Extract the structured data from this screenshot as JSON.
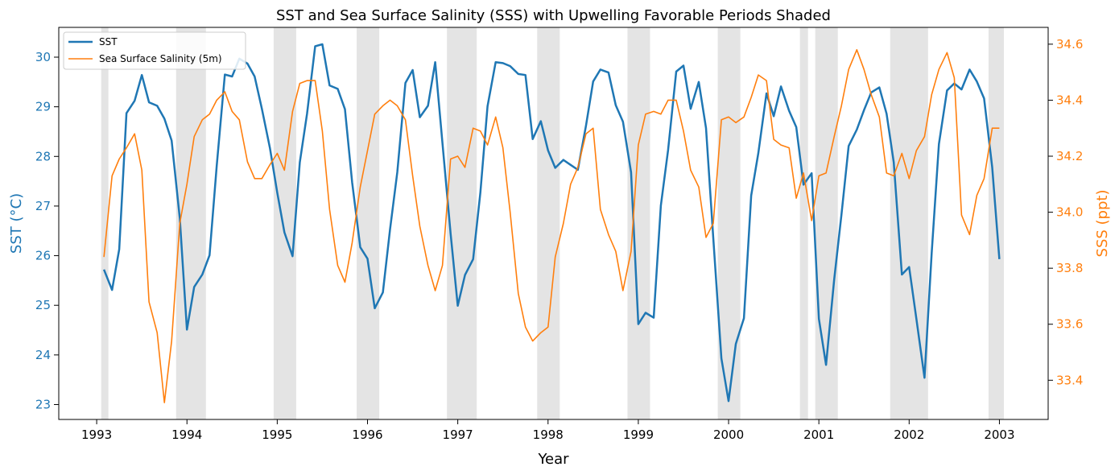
{
  "chart_data": {
    "type": "line",
    "title": "SST and Sea Surface Salinity (SSS) with Upwelling Favorable Periods Shaded",
    "xlabel": "Year",
    "ylabel_left": "SST (°C)",
    "ylabel_right": "SSS (ppt)",
    "xlim": [
      1992.58,
      2003.54
    ],
    "ylim_left": [
      22.7,
      30.6
    ],
    "ylim_right": [
      33.26,
      34.66
    ],
    "x_ticks": [
      1993,
      1994,
      1995,
      1996,
      1997,
      1998,
      1999,
      2000,
      2001,
      2002,
      2003
    ],
    "y_left_ticks": [
      23,
      24,
      25,
      26,
      27,
      28,
      29,
      30
    ],
    "y_right_ticks": [
      33.4,
      33.6,
      33.8,
      34.0,
      34.2,
      34.4,
      34.6
    ],
    "legend_position": "top-left",
    "grid": false,
    "colors": {
      "sst": "#1f77b4",
      "sss": "#ff7f0e",
      "shade": "#d9d9d9"
    },
    "x": [
      1993.08,
      1993.17,
      1993.25,
      1993.33,
      1993.42,
      1993.5,
      1993.58,
      1993.67,
      1993.75,
      1993.83,
      1993.92,
      1994.0,
      1994.08,
      1994.17,
      1994.25,
      1994.33,
      1994.42,
      1994.5,
      1994.58,
      1994.67,
      1994.75,
      1994.83,
      1994.92,
      1995.0,
      1995.08,
      1995.17,
      1995.25,
      1995.33,
      1995.42,
      1995.5,
      1995.58,
      1995.67,
      1995.75,
      1995.83,
      1995.92,
      1996.0,
      1996.08,
      1996.17,
      1996.25,
      1996.33,
      1996.42,
      1996.5,
      1996.58,
      1996.67,
      1996.75,
      1996.83,
      1996.92,
      1997.0,
      1997.08,
      1997.17,
      1997.25,
      1997.33,
      1997.42,
      1997.5,
      1997.58,
      1997.67,
      1997.75,
      1997.83,
      1997.92,
      1998.0,
      1998.08,
      1998.17,
      1998.25,
      1998.33,
      1998.42,
      1998.5,
      1998.58,
      1998.67,
      1998.75,
      1998.83,
      1998.92,
      1999.0,
      1999.08,
      1999.17,
      1999.25,
      1999.33,
      1999.42,
      1999.5,
      1999.58,
      1999.67,
      1999.75,
      1999.83,
      1999.92,
      2000.0,
      2000.08,
      2000.17,
      2000.25,
      2000.33,
      2000.42,
      2000.5,
      2000.58,
      2000.67,
      2000.75,
      2000.83,
      2000.92,
      2001.0,
      2001.08,
      2001.17,
      2001.25,
      2001.33,
      2001.42,
      2001.5,
      2001.58,
      2001.67,
      2001.75,
      2001.83,
      2001.92,
      2002.0,
      2002.08,
      2002.17,
      2002.25,
      2002.33,
      2002.42,
      2002.5,
      2002.58,
      2002.67,
      2002.75,
      2002.83,
      2002.92,
      2003.0
    ],
    "series": [
      {
        "name": "SST",
        "axis": "left",
        "values": [
          25.72,
          25.31,
          26.13,
          28.87,
          29.12,
          29.64,
          29.09,
          29.02,
          28.76,
          28.32,
          26.76,
          24.51,
          25.37,
          25.62,
          26.01,
          27.81,
          29.65,
          29.61,
          29.97,
          29.87,
          29.61,
          28.96,
          28.16,
          27.27,
          26.47,
          25.99,
          27.88,
          28.86,
          30.22,
          30.26,
          29.43,
          29.36,
          28.95,
          27.48,
          26.17,
          25.94,
          24.94,
          25.26,
          26.53,
          27.68,
          29.48,
          29.74,
          28.79,
          29.02,
          29.9,
          28.27,
          26.45,
          24.99,
          25.61,
          25.93,
          27.27,
          29.01,
          29.9,
          29.88,
          29.82,
          29.66,
          29.64,
          28.35,
          28.71,
          28.12,
          27.77,
          27.93,
          27.83,
          27.73,
          28.62,
          29.51,
          29.75,
          29.69,
          29.03,
          28.7,
          27.68,
          24.62,
          24.85,
          24.75,
          27.01,
          28.13,
          29.71,
          29.83,
          28.96,
          29.5,
          28.57,
          26.36,
          23.93,
          23.07,
          24.22,
          24.74,
          27.21,
          28.07,
          29.27,
          28.81,
          29.41,
          28.92,
          28.59,
          27.43,
          27.66,
          24.73,
          23.8,
          25.52,
          26.82,
          28.21,
          28.54,
          28.93,
          29.29,
          29.39,
          28.86,
          27.88,
          25.62,
          25.77,
          24.73,
          23.54,
          26.05,
          28.25,
          29.33,
          29.47,
          29.35,
          29.75,
          29.51,
          29.17,
          27.78,
          25.93
        ]
      },
      {
        "name": "Sea Surface Salinity (5m)",
        "axis": "right",
        "values": [
          33.84,
          34.13,
          34.19,
          34.23,
          34.28,
          34.15,
          33.68,
          33.57,
          33.32,
          33.54,
          33.96,
          34.1,
          34.27,
          34.33,
          34.35,
          34.4,
          34.43,
          34.36,
          34.33,
          34.18,
          34.12,
          34.12,
          34.17,
          34.21,
          34.15,
          34.36,
          34.46,
          34.47,
          34.47,
          34.29,
          34.01,
          33.81,
          33.75,
          33.89,
          34.09,
          34.22,
          34.35,
          34.38,
          34.4,
          34.38,
          34.33,
          34.13,
          33.95,
          33.81,
          33.72,
          33.81,
          34.19,
          34.2,
          34.16,
          34.3,
          34.29,
          34.24,
          34.34,
          34.23,
          34.0,
          33.71,
          33.59,
          33.54,
          33.57,
          33.59,
          33.84,
          33.96,
          34.1,
          34.16,
          34.28,
          34.3,
          34.01,
          33.92,
          33.86,
          33.72,
          33.86,
          34.24,
          34.35,
          34.36,
          34.35,
          34.4,
          34.4,
          34.29,
          34.15,
          34.09,
          33.91,
          33.96,
          34.33,
          34.34,
          34.32,
          34.34,
          34.41,
          34.49,
          34.47,
          34.26,
          34.24,
          34.23,
          34.05,
          34.14,
          33.97,
          34.13,
          34.14,
          34.27,
          34.38,
          34.51,
          34.58,
          34.51,
          34.42,
          34.34,
          34.14,
          34.13,
          34.21,
          34.12,
          34.22,
          34.27,
          34.42,
          34.51,
          34.57,
          34.48,
          33.99,
          33.92,
          34.06,
          34.12,
          34.3,
          34.3
        ]
      }
    ],
    "shaded_periods": [
      [
        1993.05,
        1993.13
      ],
      [
        1993.88,
        1994.21
      ],
      [
        1994.96,
        1995.21
      ],
      [
        1995.88,
        1996.13
      ],
      [
        1996.88,
        1997.21
      ],
      [
        1997.88,
        1998.13
      ],
      [
        1998.88,
        1999.13
      ],
      [
        1999.88,
        2000.13
      ],
      [
        2000.79,
        2000.88
      ],
      [
        2000.96,
        2001.21
      ],
      [
        2001.79,
        2002.21
      ],
      [
        2002.88,
        2003.05
      ]
    ]
  }
}
